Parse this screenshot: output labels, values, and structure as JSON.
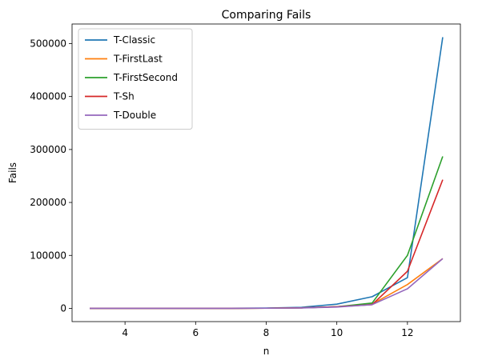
{
  "chart_data": {
    "type": "line",
    "title": "Comparing Fails",
    "xlabel": "n",
    "ylabel": "Fails",
    "x": [
      3,
      4,
      5,
      6,
      7,
      8,
      9,
      10,
      11,
      12,
      13
    ],
    "xlim": [
      2.5,
      13.5
    ],
    "ylim": [
      -25000,
      537000
    ],
    "xticks": [
      4,
      6,
      8,
      10,
      12
    ],
    "yticks": [
      0,
      100000,
      200000,
      300000,
      400000,
      500000
    ],
    "grid": false,
    "legend_position": "top-left",
    "series": [
      {
        "name": "T-Classic",
        "color": "#1f77b4",
        "values": [
          0,
          0,
          0,
          0,
          200,
          600,
          2000,
          8000,
          22000,
          58000,
          512000
        ]
      },
      {
        "name": "T-FirstLast",
        "color": "#ff7f0e",
        "values": [
          0,
          0,
          0,
          0,
          100,
          300,
          1000,
          3000,
          8000,
          45000,
          94000
        ]
      },
      {
        "name": "T-FirstSecond",
        "color": "#2ca02c",
        "values": [
          0,
          0,
          0,
          0,
          100,
          300,
          1000,
          3000,
          10000,
          100000,
          287000
        ]
      },
      {
        "name": "T-Sh",
        "color": "#d62728",
        "values": [
          0,
          0,
          0,
          0,
          100,
          300,
          1000,
          3000,
          7000,
          70000,
          243000
        ]
      },
      {
        "name": "T-Double",
        "color": "#9467bd",
        "values": [
          0,
          0,
          0,
          0,
          100,
          300,
          800,
          2500,
          7000,
          37000,
          94000
        ]
      }
    ]
  }
}
